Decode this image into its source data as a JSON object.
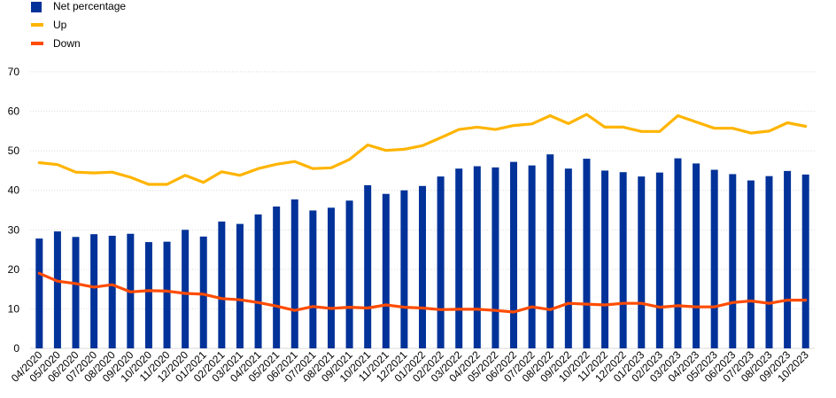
{
  "chart_data": {
    "type": "bar",
    "categories": [
      "04/2020",
      "05/2020",
      "06/2020",
      "07/2020",
      "08/2020",
      "09/2020",
      "10/2020",
      "11/2020",
      "12/2020",
      "01/2021",
      "02/2021",
      "03/2021",
      "04/2021",
      "05/2021",
      "06/2021",
      "07/2021",
      "08/2021",
      "09/2021",
      "10/2021",
      "11/2021",
      "12/2021",
      "01/2022",
      "02/2022",
      "03/2022",
      "04/2022",
      "05/2022",
      "06/2022",
      "07/2022",
      "08/2022",
      "09/2022",
      "10/2022",
      "11/2022",
      "12/2022",
      "01/2023",
      "02/2023",
      "03/2023",
      "04/2023",
      "05/2023",
      "06/2023",
      "07/2023",
      "08/2023",
      "09/2023",
      "10/2023"
    ],
    "series": [
      {
        "name": "Net percentage",
        "type": "bar",
        "color": "#003299",
        "values": [
          27.8,
          29.6,
          28.2,
          28.9,
          28.5,
          29.0,
          26.9,
          27.0,
          30.0,
          28.3,
          32.1,
          31.5,
          33.9,
          35.9,
          37.7,
          34.9,
          35.6,
          37.4,
          41.3,
          39.1,
          40.0,
          41.1,
          43.5,
          45.5,
          46.1,
          45.8,
          47.2,
          46.3,
          49.1,
          45.5,
          48.0,
          45.0,
          44.6,
          43.5,
          44.5,
          48.1,
          46.8,
          45.2,
          44.1,
          42.5,
          43.6,
          44.9,
          44.0
        ]
      },
      {
        "name": "Up",
        "type": "line",
        "color": "#FFB400",
        "values": [
          47.0,
          46.5,
          44.6,
          44.4,
          44.6,
          43.3,
          41.5,
          41.5,
          43.8,
          42.0,
          44.7,
          43.8,
          45.5,
          46.6,
          47.3,
          45.5,
          45.7,
          47.8,
          51.5,
          50.1,
          50.4,
          51.3,
          53.3,
          55.4,
          56.0,
          55.4,
          56.4,
          56.8,
          58.9,
          56.9,
          59.2,
          56.0,
          56.0,
          54.9,
          54.9,
          58.9,
          57.3,
          55.7,
          55.7,
          54.5,
          55.0,
          57.1,
          56.2
        ]
      },
      {
        "name": "Down",
        "type": "line",
        "color": "#FF4B00",
        "values": [
          19.0,
          17.0,
          16.4,
          15.5,
          16.1,
          14.3,
          14.6,
          14.5,
          13.9,
          13.7,
          12.6,
          12.3,
          11.6,
          10.7,
          9.6,
          10.6,
          10.1,
          10.4,
          10.2,
          11.0,
          10.4,
          10.2,
          9.8,
          9.9,
          9.9,
          9.6,
          9.2,
          10.5,
          9.8,
          11.4,
          11.2,
          11.0,
          11.4,
          11.4,
          10.4,
          10.8,
          10.5,
          10.5,
          11.6,
          12.0,
          11.4,
          12.2,
          12.2
        ]
      }
    ],
    "ylim": [
      0,
      70
    ],
    "yticks": [
      0,
      10,
      20,
      30,
      40,
      50,
      60,
      70
    ],
    "legend_position": "top-left",
    "grid": true
  }
}
